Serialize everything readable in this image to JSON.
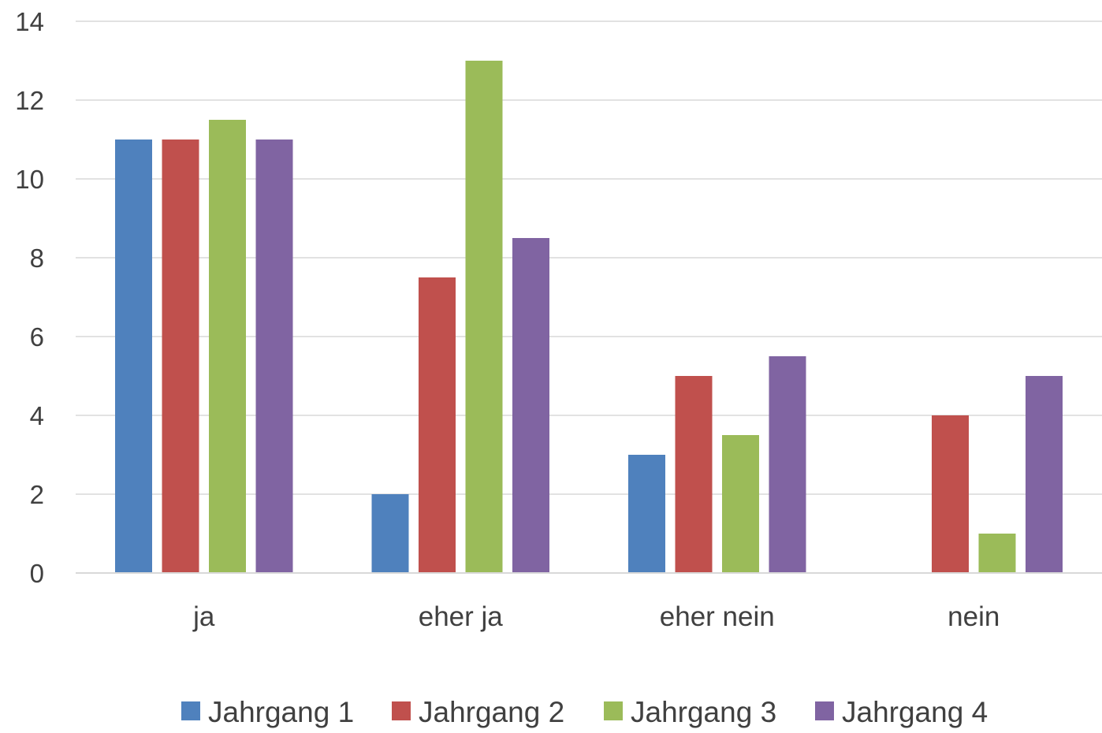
{
  "chart_data": {
    "type": "bar",
    "title": "",
    "xlabel": "",
    "ylabel": "",
    "categories": [
      "ja",
      "eher ja",
      "eher nein",
      "nein"
    ],
    "series": [
      {
        "name": "Jahrgang 1",
        "color": "#4f81bd",
        "values": [
          11,
          2,
          3,
          0
        ]
      },
      {
        "name": "Jahrgang 2",
        "color": "#c0504d",
        "values": [
          11,
          7.5,
          5,
          4
        ]
      },
      {
        "name": "Jahrgang 3",
        "color": "#9bbb59",
        "values": [
          11.5,
          13,
          3.5,
          1
        ]
      },
      {
        "name": "Jahrgang 4",
        "color": "#8064a2",
        "values": [
          11,
          8.5,
          5.5,
          5
        ]
      }
    ],
    "ylim": [
      0,
      14
    ],
    "yticks": [
      0,
      2,
      4,
      6,
      8,
      10,
      12,
      14
    ],
    "grid": true,
    "legend_position": "bottom"
  }
}
